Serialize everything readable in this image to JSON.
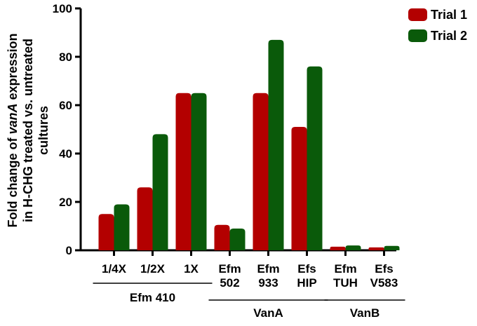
{
  "chart_data": {
    "type": "bar",
    "categories": [
      {
        "lines": [
          "1/4X"
        ]
      },
      {
        "lines": [
          "1/2X"
        ]
      },
      {
        "lines": [
          "1X"
        ]
      },
      {
        "lines": [
          "Efm",
          "502"
        ]
      },
      {
        "lines": [
          "Efm",
          "933"
        ]
      },
      {
        "lines": [
          "Efs",
          "HIP"
        ]
      },
      {
        "lines": [
          "Efm",
          "TUH"
        ]
      },
      {
        "lines": [
          "Efs",
          "V583"
        ]
      }
    ],
    "series": [
      {
        "name": "Trial 1",
        "color": "#b30000",
        "values": [
          15,
          26,
          65,
          10.5,
          65,
          51,
          1.5,
          1.2
        ]
      },
      {
        "name": "Trial 2",
        "color": "#0a5a0a",
        "values": [
          19,
          48,
          65,
          9,
          87,
          76,
          2,
          1.8
        ]
      }
    ],
    "groups": [
      {
        "label": "Efm 410",
        "from": 0,
        "to": 2
      },
      {
        "label": "VanA",
        "from": 3,
        "to": 5
      },
      {
        "label": "VanB",
        "from": 6,
        "to": 7
      }
    ],
    "ylabel_parts": [
      {
        "text": "Fold change of ",
        "italic": false
      },
      {
        "text": "vanA",
        "italic": true
      },
      {
        "text": " expression",
        "italic": false
      }
    ],
    "ylabel_line2": "in H-CHG treated vs. untreated",
    "ylabel_line3": "cultures",
    "yticks": [
      0,
      20,
      40,
      60,
      80,
      100
    ],
    "ylim": [
      0,
      100
    ],
    "legend_position": "top-right",
    "grid": false
  }
}
